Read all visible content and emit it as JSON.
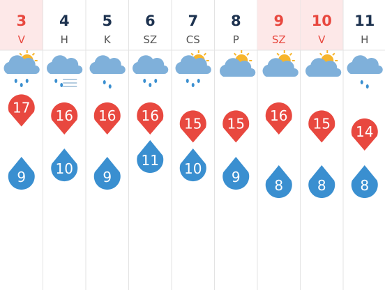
{
  "days": [
    {
      "date": "3",
      "weekday": "V",
      "weekend": true,
      "max": 17,
      "min": 9
    },
    {
      "date": "4",
      "weekday": "H",
      "weekend": false,
      "max": 16,
      "min": 10
    },
    {
      "date": "5",
      "weekday": "K",
      "weekend": false,
      "max": 16,
      "min": 9
    },
    {
      "date": "6",
      "weekday": "SZ",
      "weekend": false,
      "max": 16,
      "min": 11
    },
    {
      "date": "7",
      "weekday": "CS",
      "weekend": false,
      "max": 15,
      "min": 10
    },
    {
      "date": "8",
      "weekday": "P",
      "weekend": false,
      "max": 15,
      "min": 9
    },
    {
      "date": "9",
      "weekday": "SZ",
      "weekend": true,
      "max": 16,
      "min": 8
    },
    {
      "date": "10",
      "weekday": "V",
      "weekend": true,
      "max": 15,
      "min": 8
    },
    {
      "date": "11",
      "weekday": "H",
      "weekend": false,
      "max": 14,
      "min": 8
    }
  ]
}
